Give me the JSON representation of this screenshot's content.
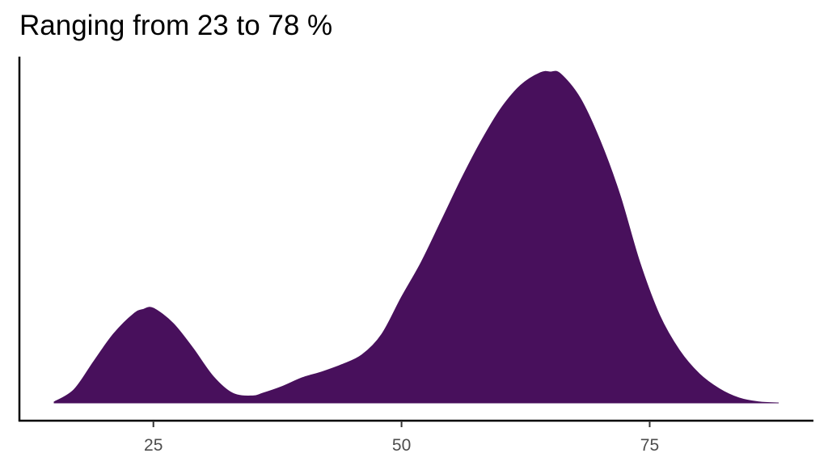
{
  "chart_data": {
    "type": "area",
    "subtype": "density",
    "title": "Ranging from 23 to 78 %",
    "xlabel": "",
    "ylabel": "",
    "xlim": [
      11.5,
      91.5
    ],
    "ylim": [
      0,
      1
    ],
    "x_ticks": [
      25,
      50,
      75
    ],
    "x_tick_labels": [
      "25",
      "50",
      "75"
    ],
    "y_ticks": [],
    "grid": false,
    "legend": "none",
    "fill_color": "#48105C",
    "series": [
      {
        "x": [
          15,
          17,
          19,
          21,
          23,
          24,
          25,
          27,
          29,
          31,
          33,
          35,
          36,
          38,
          40,
          42,
          44,
          46,
          48,
          50,
          52,
          54,
          56,
          58,
          60,
          62,
          64,
          65,
          66,
          68,
          70,
          72,
          74,
          76,
          78,
          80,
          82,
          84,
          86,
          88
        ],
        "y": [
          0.003,
          0.04,
          0.126,
          0.209,
          0.269,
          0.283,
          0.286,
          0.24,
          0.165,
          0.081,
          0.029,
          0.021,
          0.029,
          0.05,
          0.076,
          0.094,
          0.116,
          0.145,
          0.207,
          0.32,
          0.426,
          0.55,
          0.675,
          0.79,
          0.889,
          0.96,
          0.998,
          1.0,
          0.995,
          0.921,
          0.793,
          0.629,
          0.425,
          0.265,
          0.159,
          0.088,
          0.043,
          0.015,
          0.003,
          0.0
        ]
      }
    ]
  }
}
